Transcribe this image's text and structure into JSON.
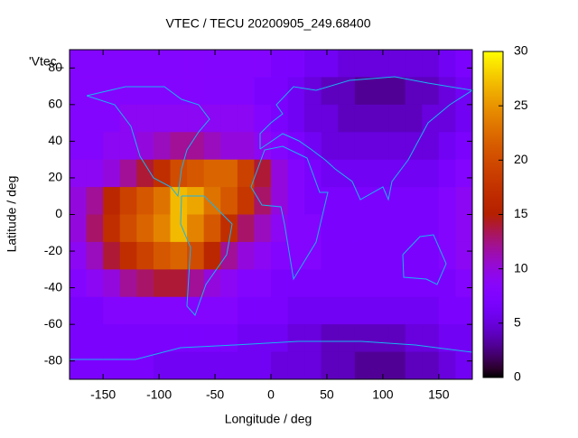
{
  "chart_data": {
    "type": "heatmap",
    "title": "VTEC / TECU 20200905_249.68400",
    "key_label": "'Vtec_",
    "x_label": "Longitude / deg",
    "y_label": "Latitude / deg",
    "xlim": [
      -180,
      180
    ],
    "ylim": [
      -90,
      90
    ],
    "xticks": [
      -150,
      -100,
      -50,
      0,
      50,
      100,
      150
    ],
    "yticks": [
      -80,
      -60,
      -40,
      -20,
      0,
      20,
      40,
      60,
      80
    ],
    "zlim": [
      0,
      30
    ],
    "zticks": [
      0,
      5,
      10,
      15,
      20,
      25,
      30
    ],
    "palette": "rgbformulae 7,5,15",
    "x": [
      -172.5,
      -157.5,
      -142.5,
      -127.5,
      -112.5,
      -97.5,
      -82.5,
      -67.5,
      -52.5,
      -37.5,
      -22.5,
      -7.5,
      7.5,
      22.5,
      37.5,
      52.5,
      67.5,
      82.5,
      97.5,
      112.5,
      127.5,
      142.5,
      157.5,
      172.5
    ],
    "y": [
      82.5,
      67.5,
      52.5,
      37.5,
      22.5,
      7.5,
      -7.5,
      -22.5,
      -37.5,
      -52.5,
      -67.5,
      -82.5
    ],
    "values": [
      [
        8,
        8,
        8,
        8,
        8,
        8,
        8,
        8,
        8,
        8,
        8,
        8,
        7,
        7,
        6,
        6,
        5,
        5,
        5,
        5,
        5,
        5,
        6,
        7
      ],
      [
        8,
        8,
        8,
        8,
        8,
        8,
        8,
        8,
        8,
        8,
        8,
        7,
        7,
        6,
        5,
        4,
        4,
        3,
        3,
        3,
        4,
        4,
        5,
        6
      ],
      [
        8,
        8,
        8,
        9,
        9,
        9,
        9,
        9,
        9,
        9,
        9,
        8,
        7,
        6,
        5,
        5,
        4,
        4,
        4,
        4,
        4,
        5,
        5,
        6
      ],
      [
        8,
        8,
        9,
        9,
        10,
        11,
        12,
        12,
        11,
        10,
        10,
        9,
        8,
        7,
        6,
        5,
        5,
        5,
        5,
        5,
        5,
        5,
        6,
        7
      ],
      [
        9,
        9,
        10,
        12,
        14,
        17,
        20,
        21,
        22,
        22,
        19,
        14,
        10,
        8,
        7,
        6,
        6,
        6,
        6,
        6,
        6,
        6,
        7,
        8
      ],
      [
        10,
        12,
        16,
        19,
        21,
        23,
        27,
        26,
        23,
        21,
        18,
        13,
        10,
        8,
        7,
        7,
        7,
        7,
        7,
        7,
        7,
        7,
        8,
        9
      ],
      [
        10,
        13,
        17,
        20,
        22,
        24,
        27,
        24,
        21,
        17,
        13,
        11,
        9,
        8,
        8,
        7,
        7,
        7,
        7,
        7,
        7,
        7,
        8,
        9
      ],
      [
        9,
        11,
        14,
        17,
        19,
        21,
        22,
        20,
        16,
        12,
        10,
        9,
        8,
        8,
        8,
        7,
        7,
        7,
        7,
        7,
        7,
        7,
        8,
        9
      ],
      [
        8,
        9,
        10,
        12,
        13,
        14,
        14,
        12,
        10,
        9,
        8,
        8,
        7,
        7,
        7,
        7,
        7,
        7,
        7,
        7,
        7,
        7,
        7,
        8
      ],
      [
        7,
        7,
        8,
        8,
        8,
        8,
        8,
        8,
        8,
        8,
        7,
        7,
        7,
        6,
        6,
        6,
        6,
        6,
        6,
        6,
        6,
        6,
        7,
        7
      ],
      [
        7,
        7,
        7,
        7,
        7,
        7,
        7,
        7,
        7,
        7,
        6,
        6,
        6,
        5,
        5,
        4,
        4,
        4,
        4,
        4,
        5,
        5,
        6,
        6
      ],
      [
        7,
        7,
        7,
        7,
        7,
        6,
        6,
        6,
        6,
        6,
        6,
        6,
        5,
        5,
        5,
        4,
        4,
        3,
        3,
        3,
        4,
        4,
        5,
        6
      ]
    ]
  }
}
